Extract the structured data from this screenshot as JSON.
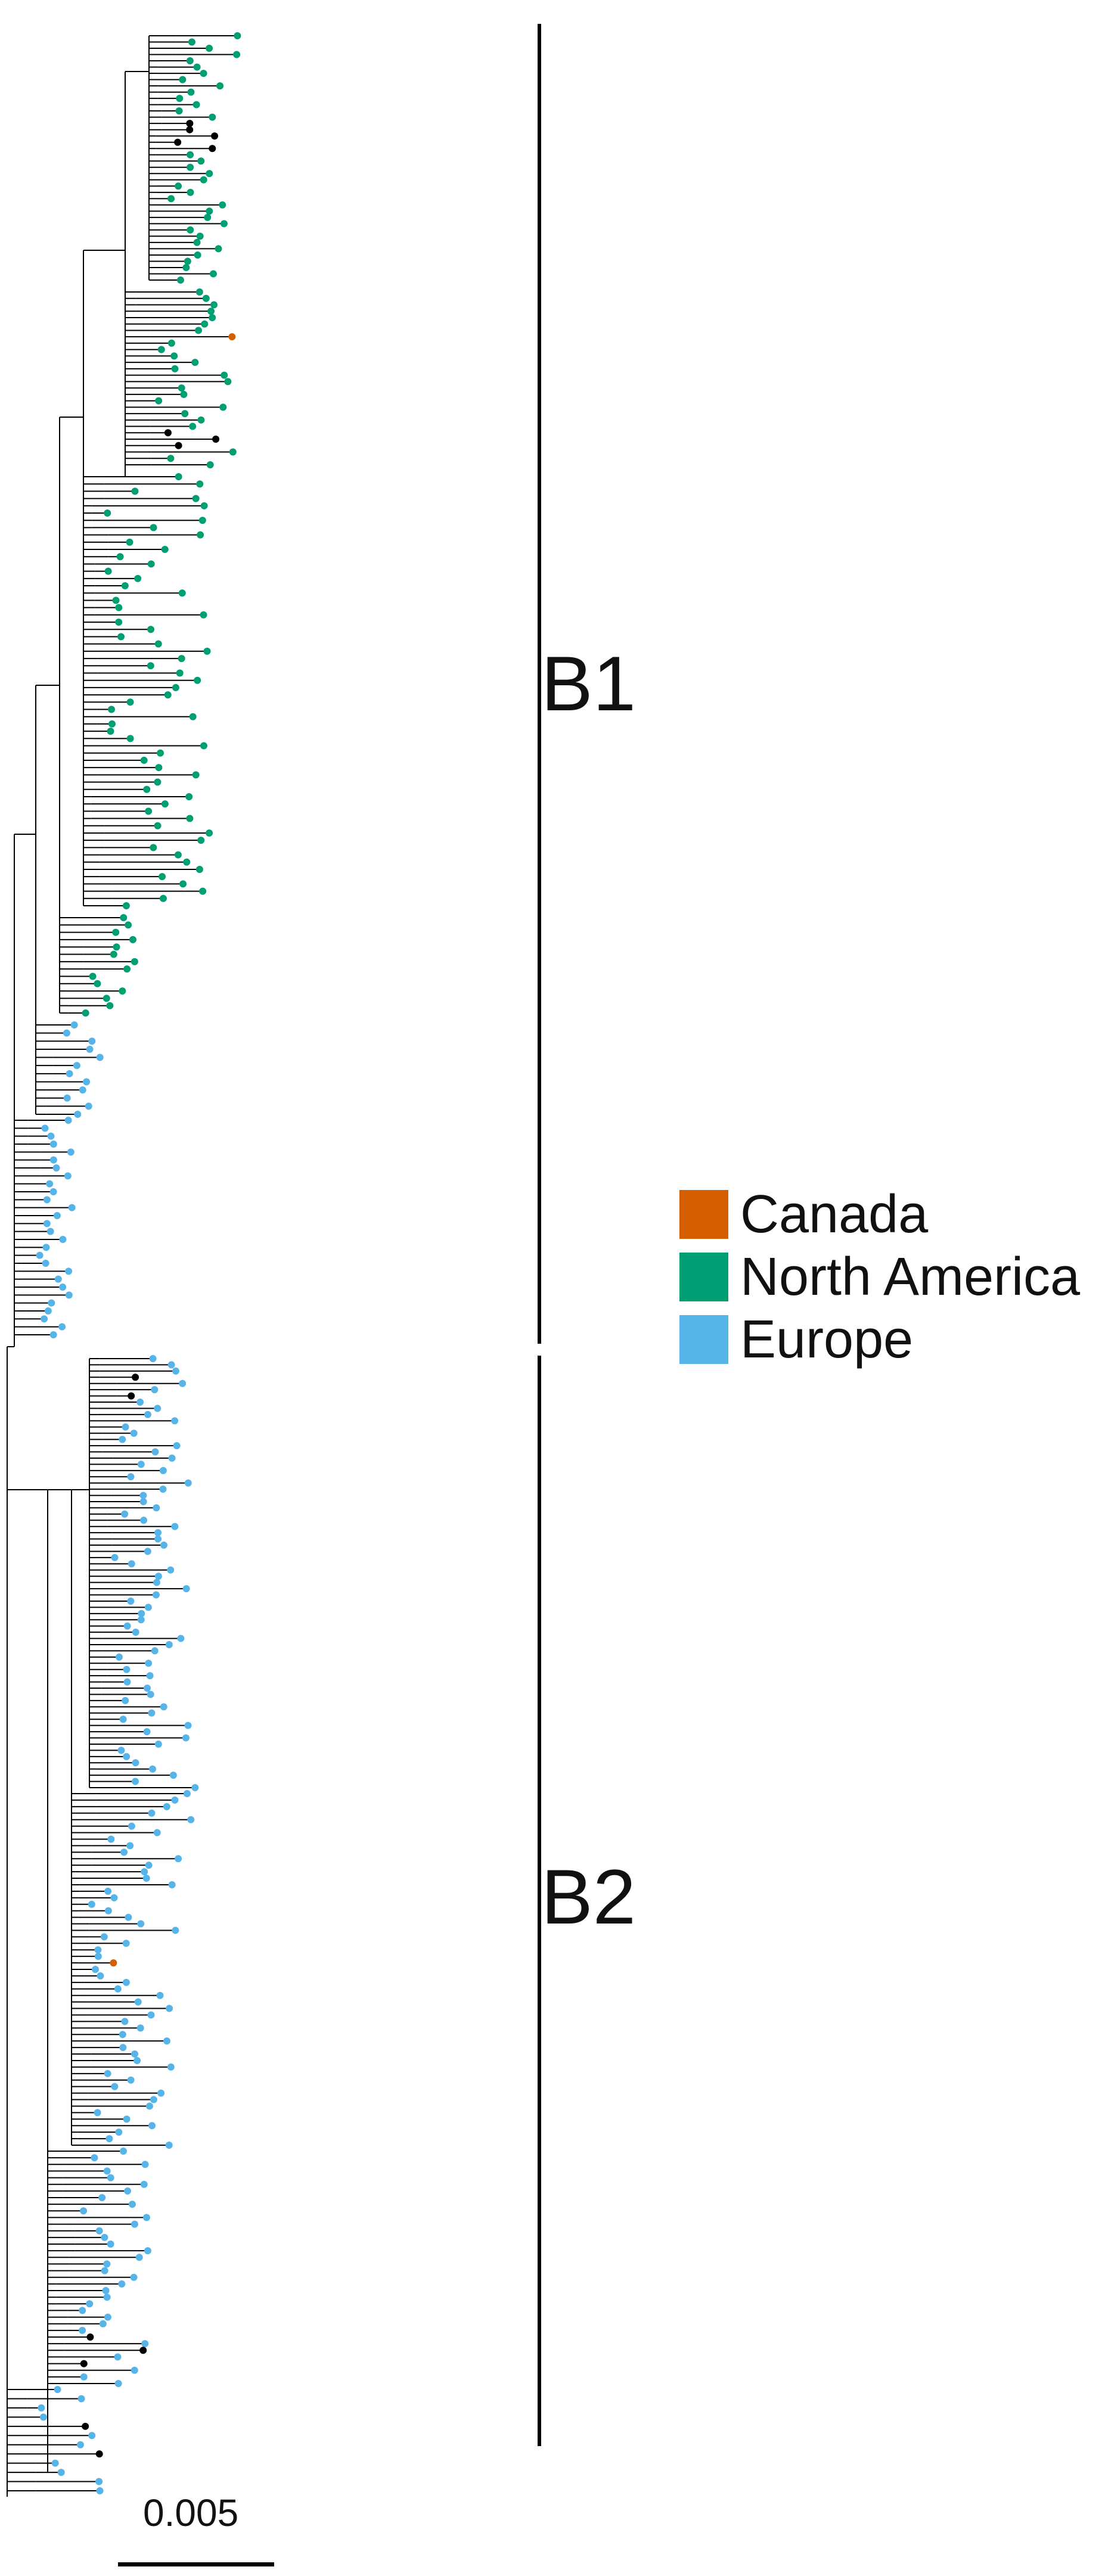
{
  "figure": {
    "clades": [
      {
        "id": "B1",
        "label": "B1"
      },
      {
        "id": "B2",
        "label": "B2"
      }
    ],
    "legend": [
      {
        "label": "Canada",
        "color": "#D55E00"
      },
      {
        "label": "North America",
        "color": "#009E73"
      },
      {
        "label": "Europe",
        "color": "#56B4E9"
      }
    ],
    "unlabeled_tip_color": "#000000",
    "scale_bar": {
      "label": "0.005"
    }
  }
}
